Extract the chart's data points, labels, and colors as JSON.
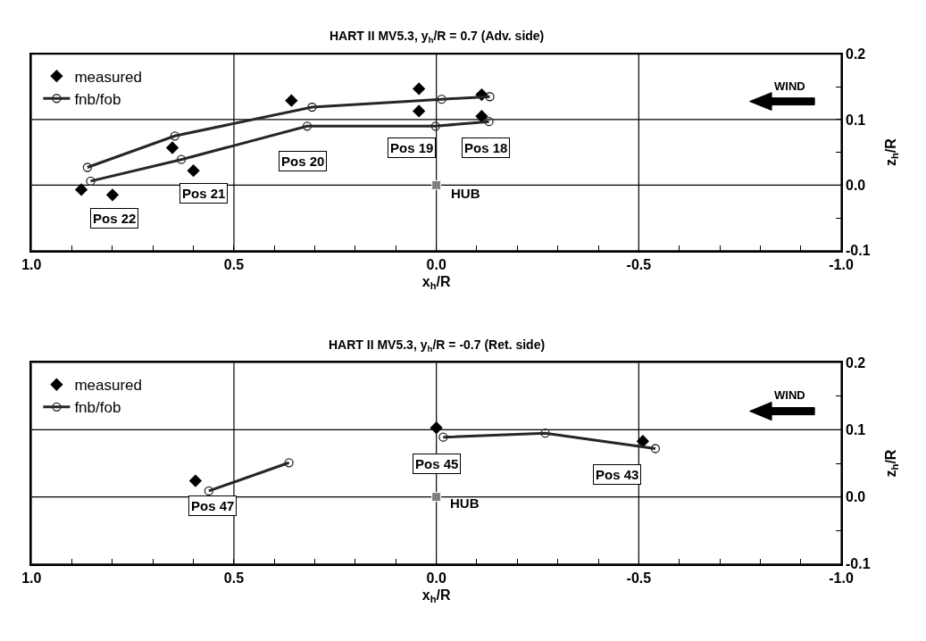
{
  "chart_data": [
    {
      "type": "scatter",
      "title": "HART II MV5.3, y$_{h}$/R = 0.7 (Adv. side)",
      "xlabel": "x$_{h}$/R",
      "ylabel": "z$_{h}$/R",
      "xlim": [
        1.0,
        -1.0
      ],
      "ylim": [
        -0.1,
        0.2
      ],
      "xticks": [
        {
          "value": 1.0,
          "label": "1.0"
        },
        {
          "value": 0.9,
          "label": null
        },
        {
          "value": 0.8,
          "label": null
        },
        {
          "value": 0.7,
          "label": null
        },
        {
          "value": 0.6,
          "label": null
        },
        {
          "value": 0.5,
          "label": "0.5"
        },
        {
          "value": 0.4,
          "label": null
        },
        {
          "value": 0.3,
          "label": null
        },
        {
          "value": 0.2,
          "label": null
        },
        {
          "value": 0.1,
          "label": null
        },
        {
          "value": 0.0,
          "label": "0.0"
        },
        {
          "value": -0.1,
          "label": null
        },
        {
          "value": -0.2,
          "label": null
        },
        {
          "value": -0.3,
          "label": null
        },
        {
          "value": -0.4,
          "label": null
        },
        {
          "value": -0.5,
          "label": "-0.5"
        },
        {
          "value": -0.6,
          "label": null
        },
        {
          "value": -0.7,
          "label": null
        },
        {
          "value": -0.8,
          "label": null
        },
        {
          "value": -0.9,
          "label": null
        },
        {
          "value": -1.0,
          "label": "-1.0"
        }
      ],
      "yticks": [
        {
          "value": -0.1,
          "label": "-0.1"
        },
        {
          "value": -0.05,
          "label": null
        },
        {
          "value": 0.0,
          "label": "0.0"
        },
        {
          "value": 0.05,
          "label": null
        },
        {
          "value": 0.1,
          "label": "0.1"
        },
        {
          "value": 0.15,
          "label": null
        },
        {
          "value": 0.2,
          "label": "0.2"
        }
      ],
      "grid": true,
      "legend": "top left",
      "series": [
        {
          "name": "measured",
          "marker": "diamond",
          "color": "#000000",
          "x": [
            0.877,
            0.8,
            0.652,
            0.6,
            0.358,
            0.043,
            0.043,
            -0.112,
            -0.112
          ],
          "values": [
            -0.007,
            -0.015,
            0.057,
            0.022,
            0.129,
            0.147,
            0.113,
            0.138,
            0.105
          ]
        },
        {
          "name": "fnb/fob",
          "type": "line",
          "marker": "circle",
          "color": "#262626",
          "x": [
            0.862,
            0.646,
            0.307,
            -0.013,
            -0.132,
            null,
            0.854,
            0.63,
            0.319,
            0.002,
            -0.13
          ],
          "values": [
            0.027,
            0.075,
            0.119,
            0.131,
            0.135,
            null,
            0.006,
            0.039,
            0.09,
            0.09,
            0.097
          ]
        },
        {
          "marker": "square",
          "color": "#808080",
          "x": [
            0.0
          ],
          "values": [
            0.0
          ]
        }
      ],
      "annotations": [
        "Pos 22",
        "Pos 21",
        "Pos 20",
        "Pos 19",
        "Pos 18",
        "HUB",
        "WIND"
      ]
    },
    {
      "type": "scatter",
      "title": "HART II MV5.3, y$_{h}$/R = -0.7 (Ret. side)",
      "xlabel": "x$_{h}$/R",
      "ylabel": "z$_{h}$/R",
      "xlim": [
        1.0,
        -1.0
      ],
      "ylim": [
        -0.1,
        0.2
      ],
      "xticks": [
        {
          "value": 1.0,
          "label": "1.0"
        },
        {
          "value": 0.9,
          "label": null
        },
        {
          "value": 0.8,
          "label": null
        },
        {
          "value": 0.7,
          "label": null
        },
        {
          "value": 0.6,
          "label": null
        },
        {
          "value": 0.5,
          "label": "0.5"
        },
        {
          "value": 0.4,
          "label": null
        },
        {
          "value": 0.3,
          "label": null
        },
        {
          "value": 0.2,
          "label": null
        },
        {
          "value": 0.1,
          "label": null
        },
        {
          "value": 0.0,
          "label": "0.0"
        },
        {
          "value": -0.1,
          "label": null
        },
        {
          "value": -0.2,
          "label": null
        },
        {
          "value": -0.3,
          "label": null
        },
        {
          "value": -0.4,
          "label": null
        },
        {
          "value": -0.5,
          "label": "-0.5"
        },
        {
          "value": -0.6,
          "label": null
        },
        {
          "value": -0.7,
          "label": null
        },
        {
          "value": -0.8,
          "label": null
        },
        {
          "value": -0.9,
          "label": null
        },
        {
          "value": -1.0,
          "label": "-1.0"
        }
      ],
      "yticks": [
        {
          "value": -0.1,
          "label": "-0.1"
        },
        {
          "value": -0.05,
          "label": null
        },
        {
          "value": 0.0,
          "label": "0.0"
        },
        {
          "value": 0.05,
          "label": null
        },
        {
          "value": 0.1,
          "label": "0.1"
        },
        {
          "value": 0.15,
          "label": null
        },
        {
          "value": 0.2,
          "label": "0.2"
        }
      ],
      "grid": true,
      "legend": "top left",
      "series": [
        {
          "name": "measured",
          "marker": "diamond",
          "color": "#000000",
          "x": [
            0.595,
            0.0,
            -0.51
          ],
          "values": [
            0.024,
            0.103,
            0.083
          ]
        },
        {
          "name": "fnb/fob",
          "type": "line",
          "marker": "circle",
          "color": "#262626",
          "x": [
            0.562,
            0.364,
            null,
            -0.017,
            -0.269,
            -0.541
          ],
          "values": [
            0.009,
            0.051,
            null,
            0.089,
            0.095,
            0.072
          ]
        },
        {
          "marker": "square",
          "color": "#808080",
          "x": [
            0.0
          ],
          "values": [
            0.0
          ]
        }
      ],
      "annotations": [
        "Pos 47",
        "Pos 45",
        "Pos 43",
        "HUB",
        "WIND"
      ]
    }
  ]
}
